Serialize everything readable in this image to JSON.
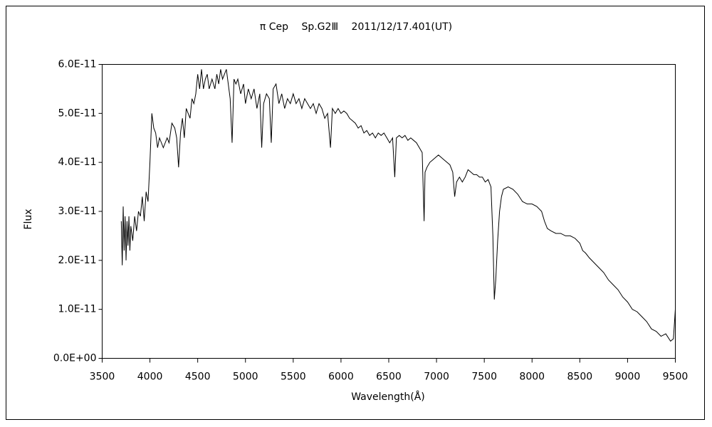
{
  "chart_data": {
    "type": "line",
    "title": "π Cep　 Sp.G2Ⅲ　 2011/12/17.401(UT)",
    "x_label": "Wavelength(Å)",
    "y_label": "Flux",
    "color": "#000000",
    "grid": false,
    "xlim": [
      3500,
      9500
    ],
    "xticks": [
      3500,
      4000,
      4500,
      5000,
      5500,
      6000,
      6500,
      7000,
      7500,
      8000,
      8500,
      9000,
      9500
    ],
    "ylim": [
      0,
      6e-11
    ],
    "yticks": [
      {
        "value": 0,
        "label": "0.0E+00"
      },
      {
        "value": 1e-11,
        "label": "1.0E-11"
      },
      {
        "value": 2e-11,
        "label": "2.0E-11"
      },
      {
        "value": 3e-11,
        "label": "3.0E-11"
      },
      {
        "value": 4e-11,
        "label": "4.0E-11"
      },
      {
        "value": 5e-11,
        "label": "5.0E-11"
      },
      {
        "value": 6e-11,
        "label": "6.0E-11"
      }
    ],
    "x": [
      3700,
      3710,
      3720,
      3730,
      3740,
      3750,
      3760,
      3770,
      3780,
      3790,
      3800,
      3820,
      3840,
      3860,
      3880,
      3900,
      3920,
      3940,
      3960,
      3980,
      4000,
      4020,
      4040,
      4060,
      4080,
      4100,
      4120,
      4140,
      4160,
      4180,
      4200,
      4230,
      4260,
      4280,
      4300,
      4320,
      4340,
      4360,
      4380,
      4400,
      4420,
      4440,
      4460,
      4480,
      4500,
      4520,
      4540,
      4560,
      4580,
      4600,
      4620,
      4650,
      4680,
      4700,
      4720,
      4740,
      4760,
      4780,
      4800,
      4820,
      4840,
      4860,
      4880,
      4900,
      4920,
      4950,
      4980,
      5000,
      5030,
      5060,
      5090,
      5120,
      5150,
      5170,
      5190,
      5220,
      5250,
      5270,
      5290,
      5320,
      5350,
      5380,
      5410,
      5440,
      5470,
      5500,
      5530,
      5560,
      5590,
      5620,
      5650,
      5680,
      5710,
      5740,
      5770,
      5800,
      5830,
      5860,
      5890,
      5910,
      5940,
      5970,
      6000,
      6030,
      6060,
      6090,
      6120,
      6150,
      6180,
      6210,
      6240,
      6270,
      6300,
      6330,
      6360,
      6390,
      6420,
      6450,
      6480,
      6510,
      6540,
      6563,
      6580,
      6610,
      6640,
      6670,
      6700,
      6730,
      6760,
      6790,
      6820,
      6850,
      6870,
      6880,
      6900,
      6930,
      6960,
      6990,
      7020,
      7050,
      7080,
      7110,
      7140,
      7170,
      7190,
      7210,
      7240,
      7270,
      7300,
      7330,
      7360,
      7390,
      7420,
      7450,
      7480,
      7510,
      7540,
      7570,
      7590,
      7605,
      7620,
      7640,
      7660,
      7680,
      7700,
      7750,
      7800,
      7850,
      7900,
      7950,
      8000,
      8050,
      8100,
      8130,
      8160,
      8200,
      8250,
      8300,
      8350,
      8400,
      8450,
      8500,
      8530,
      8560,
      8600,
      8650,
      8700,
      8750,
      8800,
      8850,
      8900,
      8950,
      9000,
      9050,
      9100,
      9150,
      9200,
      9250,
      9300,
      9350,
      9400,
      9450,
      9480,
      9500
    ],
    "values": [
      2.8e-11,
      1.9e-11,
      3.1e-11,
      2.2e-11,
      2.9e-11,
      2e-11,
      2.8e-11,
      2.3e-11,
      2.9e-11,
      2.2e-11,
      2.7e-11,
      2.4e-11,
      2.9e-11,
      2.6e-11,
      3e-11,
      2.9e-11,
      3.3e-11,
      2.8e-11,
      3.4e-11,
      3.2e-11,
      4e-11,
      5e-11,
      4.7e-11,
      4.6e-11,
      4.3e-11,
      4.5e-11,
      4.4e-11,
      4.3e-11,
      4.4e-11,
      4.5e-11,
      4.4e-11,
      4.8e-11,
      4.7e-11,
      4.5e-11,
      3.9e-11,
      4.6e-11,
      4.9e-11,
      4.5e-11,
      5.1e-11,
      5e-11,
      4.9e-11,
      5.3e-11,
      5.2e-11,
      5.4e-11,
      5.8e-11,
      5.5e-11,
      5.9e-11,
      5.5e-11,
      5.7e-11,
      5.8e-11,
      5.5e-11,
      5.7e-11,
      5.5e-11,
      5.8e-11,
      5.6e-11,
      5.9e-11,
      5.7e-11,
      5.8e-11,
      5.9e-11,
      5.6e-11,
      5.3e-11,
      4.4e-11,
      5.7e-11,
      5.6e-11,
      5.7e-11,
      5.4e-11,
      5.6e-11,
      5.2e-11,
      5.5e-11,
      5.3e-11,
      5.5e-11,
      5.1e-11,
      5.4e-11,
      4.3e-11,
      5.2e-11,
      5.4e-11,
      5.3e-11,
      4.4e-11,
      5.5e-11,
      5.6e-11,
      5.2e-11,
      5.4e-11,
      5.1e-11,
      5.3e-11,
      5.2e-11,
      5.4e-11,
      5.2e-11,
      5.3e-11,
      5.1e-11,
      5.3e-11,
      5.2e-11,
      5.1e-11,
      5.2e-11,
      5e-11,
      5.2e-11,
      5.1e-11,
      4.9e-11,
      5e-11,
      4.3e-11,
      5.1e-11,
      5e-11,
      5.1e-11,
      5e-11,
      5.05e-11,
      5e-11,
      4.9e-11,
      4.85e-11,
      4.8e-11,
      4.7e-11,
      4.75e-11,
      4.6e-11,
      4.65e-11,
      4.55e-11,
      4.6e-11,
      4.5e-11,
      4.6e-11,
      4.55e-11,
      4.6e-11,
      4.5e-11,
      4.4e-11,
      4.5e-11,
      3.7e-11,
      4.5e-11,
      4.55e-11,
      4.5e-11,
      4.55e-11,
      4.45e-11,
      4.5e-11,
      4.45e-11,
      4.4e-11,
      4.3e-11,
      4.2e-11,
      2.8e-11,
      3.8e-11,
      3.9e-11,
      4e-11,
      4.05e-11,
      4.1e-11,
      4.15e-11,
      4.1e-11,
      4.05e-11,
      4e-11,
      3.95e-11,
      3.8e-11,
      3.3e-11,
      3.6e-11,
      3.7e-11,
      3.6e-11,
      3.7e-11,
      3.85e-11,
      3.8e-11,
      3.75e-11,
      3.75e-11,
      3.7e-11,
      3.7e-11,
      3.6e-11,
      3.65e-11,
      3.5e-11,
      2.5e-11,
      1.2e-11,
      1.6e-11,
      2.4e-11,
      3e-11,
      3.3e-11,
      3.45e-11,
      3.5e-11,
      3.45e-11,
      3.35e-11,
      3.2e-11,
      3.15e-11,
      3.15e-11,
      3.1e-11,
      3e-11,
      2.8e-11,
      2.65e-11,
      2.6e-11,
      2.55e-11,
      2.55e-11,
      2.5e-11,
      2.5e-11,
      2.45e-11,
      2.35e-11,
      2.2e-11,
      2.15e-11,
      2.05e-11,
      1.95e-11,
      1.85e-11,
      1.75e-11,
      1.6e-11,
      1.5e-11,
      1.4e-11,
      1.25e-11,
      1.15e-11,
      1e-11,
      9.5e-12,
      8.5e-12,
      7.5e-12,
      6e-12,
      5.5e-12,
      4.5e-12,
      5e-12,
      3.5e-12,
      4e-12,
      1e-11
    ]
  }
}
